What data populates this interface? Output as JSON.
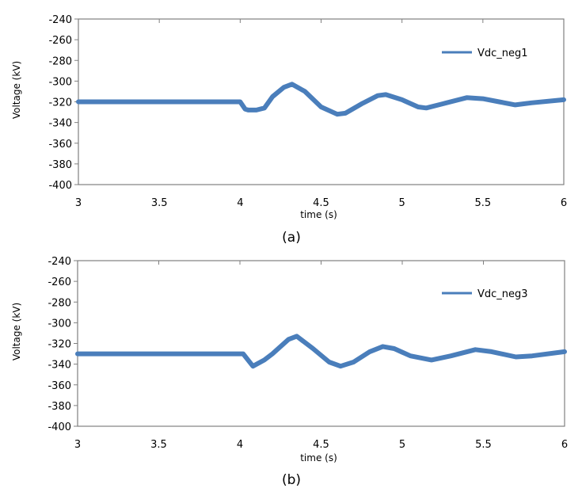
{
  "chart_data": [
    {
      "type": "line",
      "caption": "(a)",
      "xlabel": "time (s)",
      "ylabel": "Voltage (kV)",
      "xlim": [
        3,
        6
      ],
      "ylim": [
        -400,
        -240
      ],
      "xticks": [
        3,
        3.5,
        4,
        4.5,
        5,
        5.5,
        6
      ],
      "xtick_labels": [
        "3",
        "3.5",
        "4",
        "4.5",
        "5",
        "5.5",
        "6"
      ],
      "yticks": [
        -240,
        -260,
        -280,
        -300,
        -320,
        -340,
        -360,
        -380,
        -400
      ],
      "ytick_labels": [
        "-240",
        "-260",
        "-280",
        "-300",
        "-320",
        "-340",
        "-360",
        "-380",
        "-400"
      ],
      "grid": false,
      "legend_position": "top-right",
      "series": [
        {
          "name": "Vdc_neg1",
          "color": "#4a7ebb",
          "x": [
            3,
            3.5,
            4.0,
            4.03,
            4.05,
            4.1,
            4.15,
            4.2,
            4.27,
            4.32,
            4.4,
            4.5,
            4.6,
            4.65,
            4.75,
            4.85,
            4.9,
            5.0,
            5.1,
            5.15,
            5.25,
            5.4,
            5.5,
            5.6,
            5.7,
            5.8,
            6.0
          ],
          "y": [
            -320,
            -320,
            -320,
            -327,
            -328,
            -328,
            -326,
            -315,
            -306,
            -303,
            -310,
            -325,
            -332,
            -331,
            -322,
            -314,
            -313,
            -318,
            -325,
            -326,
            -322,
            -316,
            -317,
            -320,
            -323,
            -321,
            -318
          ]
        }
      ]
    },
    {
      "type": "line",
      "caption": "(b)",
      "xlabel": "time (s)",
      "ylabel": "Voltage (kV)",
      "xlim": [
        3,
        6
      ],
      "ylim": [
        -400,
        -240
      ],
      "xticks": [
        3,
        3.5,
        4,
        4.5,
        5,
        5.5,
        6
      ],
      "xtick_labels": [
        "3",
        "3.5",
        "4",
        "4.5",
        "5",
        "5.5",
        "6"
      ],
      "yticks": [
        -240,
        -260,
        -280,
        -300,
        -320,
        -340,
        -360,
        -380,
        -400
      ],
      "ytick_labels": [
        "-240",
        "-260",
        "-280",
        "-300",
        "-320",
        "-340",
        "-360",
        "-380",
        "-400"
      ],
      "grid": false,
      "legend_position": "top-right",
      "series": [
        {
          "name": "Vdc_neg3",
          "color": "#4a7ebb",
          "x": [
            3,
            3.5,
            4.02,
            4.08,
            4.15,
            4.2,
            4.3,
            4.35,
            4.45,
            4.55,
            4.62,
            4.7,
            4.8,
            4.88,
            4.95,
            5.05,
            5.18,
            5.3,
            5.45,
            5.55,
            5.7,
            5.8,
            6.0
          ],
          "y": [
            -330,
            -330,
            -330,
            -342,
            -336,
            -330,
            -316,
            -313,
            -325,
            -338,
            -342,
            -338,
            -328,
            -323,
            -325,
            -332,
            -336,
            -332,
            -326,
            -328,
            -333,
            -332,
            -328
          ]
        }
      ]
    }
  ]
}
